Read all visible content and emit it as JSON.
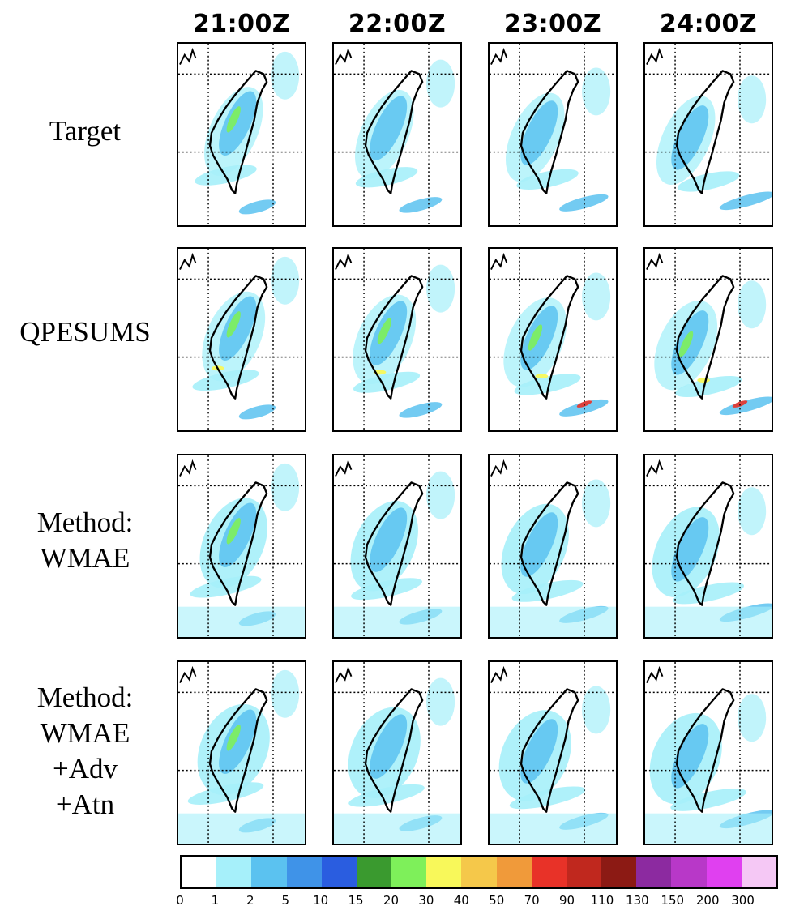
{
  "columns": [
    "21:00Z",
    "22:00Z",
    "23:00Z",
    "24:00Z"
  ],
  "rows": [
    {
      "lines": [
        "Target"
      ]
    },
    {
      "lines": [
        "QPESUMS"
      ]
    },
    {
      "lines": [
        "Method:",
        "WMAE"
      ]
    },
    {
      "lines": [
        "Method:",
        "WMAE",
        "+Adv",
        "+Atn"
      ]
    }
  ],
  "colorbar": {
    "ticks": [
      "0",
      "1",
      "2",
      "5",
      "10",
      "15",
      "20",
      "30",
      "40",
      "50",
      "70",
      "90",
      "110",
      "130",
      "150",
      "200",
      "300"
    ],
    "colors": [
      "#ffffff",
      "#a6f0fa",
      "#5bc2f0",
      "#3f93e8",
      "#2a5de0",
      "#3a9a2f",
      "#7ef05a",
      "#f8f85a",
      "#f5c84a",
      "#f09a3a",
      "#e83228",
      "#c0281e",
      "#8c1a14",
      "#8c2aa0",
      "#b838c8",
      "#e040f0",
      "#f5c8f5"
    ]
  }
}
